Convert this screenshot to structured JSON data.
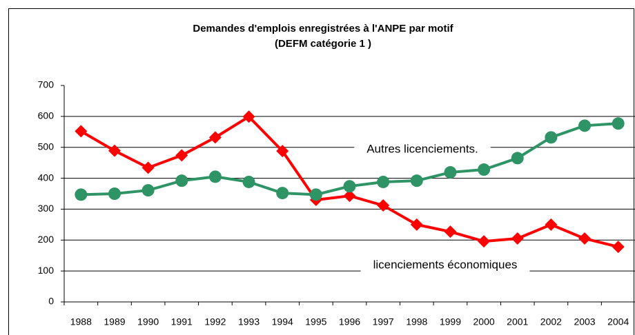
{
  "chart_data": {
    "type": "line",
    "title": [
      "Demandes d'emplois enregistrées à l'ANPE par motif",
      "(DEFM catégorie 1 )"
    ],
    "categories": [
      "1988",
      "1989",
      "1990",
      "1991",
      "1992",
      "1993",
      "1994",
      "1995",
      "1996",
      "1997",
      "1998",
      "1999",
      "2000",
      "2001",
      "2002",
      "2003",
      "2004"
    ],
    "series": [
      {
        "name": "licenciements économiques",
        "color": "#ff0000",
        "marker": "diamond",
        "values": [
          552,
          489,
          434,
          474,
          532,
          599,
          488,
          330,
          343,
          312,
          250,
          227,
          196,
          205,
          250,
          205,
          178
        ]
      },
      {
        "name": "Autres licenciements.",
        "color": "#2e9466",
        "marker": "circle",
        "values": [
          347,
          350,
          361,
          392,
          405,
          388,
          352,
          347,
          374,
          388,
          392,
          419,
          428,
          465,
          532,
          570,
          577
        ]
      }
    ],
    "ylim": [
      0,
      700
    ],
    "yticks": [
      0,
      100,
      200,
      300,
      400,
      500,
      600,
      700
    ],
    "grid": true
  }
}
